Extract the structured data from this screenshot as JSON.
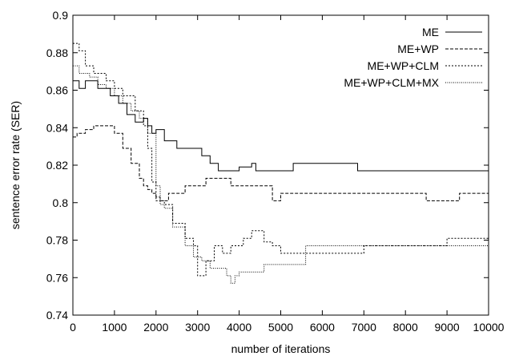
{
  "chart_data": {
    "type": "line",
    "title": "",
    "xlabel": "number of iterations",
    "ylabel": "sentence error rate (SER)",
    "xlim": [
      0,
      10000
    ],
    "ylim": [
      0.74,
      0.9
    ],
    "xticks": [
      0,
      1000,
      2000,
      3000,
      4000,
      5000,
      6000,
      7000,
      8000,
      9000,
      10000
    ],
    "yticks": [
      0.74,
      0.76,
      0.78,
      0.8,
      0.82,
      0.84,
      0.86,
      0.88,
      0.9
    ],
    "ytick_labels": [
      "0.74",
      "0.76",
      "0.78",
      "0.8",
      "0.82",
      "0.84",
      "0.86",
      "0.88",
      "0.9"
    ],
    "grid": false,
    "legend_position": "top-right",
    "series": [
      {
        "name": "ME",
        "style": "solid",
        "color": "#000000",
        "x": [
          0,
          150,
          300,
          600,
          900,
          1100,
          1300,
          1500,
          1700,
          1800,
          1900,
          2000,
          2200,
          2500,
          2800,
          3100,
          3300,
          3500,
          4000,
          4300,
          4400,
          4500,
          4800,
          5300,
          5600,
          5700,
          6000,
          6850,
          7500,
          8500,
          10000
        ],
        "y": [
          0.865,
          0.861,
          0.865,
          0.861,
          0.857,
          0.853,
          0.847,
          0.843,
          0.845,
          0.841,
          0.837,
          0.839,
          0.833,
          0.829,
          0.829,
          0.825,
          0.821,
          0.817,
          0.819,
          0.821,
          0.817,
          0.817,
          0.817,
          0.821,
          0.821,
          0.821,
          0.821,
          0.817,
          0.817,
          0.817,
          0.817
        ]
      },
      {
        "name": "ME+WP",
        "style": "dashed",
        "color": "#000000",
        "x": [
          0,
          100,
          300,
          500,
          800,
          1000,
          1200,
          1400,
          1600,
          1700,
          1800,
          1900,
          2000,
          2100,
          2300,
          2700,
          3200,
          3800,
          4300,
          4800,
          5000,
          5300,
          5500,
          6000,
          7000,
          8000,
          8500,
          9300,
          10000
        ],
        "y": [
          0.835,
          0.837,
          0.839,
          0.841,
          0.841,
          0.837,
          0.829,
          0.821,
          0.813,
          0.809,
          0.807,
          0.805,
          0.803,
          0.801,
          0.805,
          0.809,
          0.813,
          0.809,
          0.809,
          0.801,
          0.805,
          0.805,
          0.805,
          0.805,
          0.805,
          0.805,
          0.801,
          0.805,
          0.805
        ]
      },
      {
        "name": "ME+WP+CLM",
        "style": "dotted",
        "color": "#000000",
        "x": [
          0,
          150,
          300,
          500,
          800,
          1000,
          1200,
          1500,
          1700,
          1800,
          1900,
          2000,
          2200,
          2400,
          2700,
          2900,
          3000,
          3200,
          3400,
          3600,
          3800,
          4100,
          4300,
          4600,
          4800,
          5000,
          6000,
          7000,
          8000,
          9000,
          10000
        ],
        "y": [
          0.885,
          0.881,
          0.873,
          0.869,
          0.865,
          0.861,
          0.857,
          0.849,
          0.841,
          0.829,
          0.811,
          0.801,
          0.799,
          0.789,
          0.781,
          0.777,
          0.761,
          0.769,
          0.777,
          0.773,
          0.777,
          0.781,
          0.785,
          0.779,
          0.777,
          0.773,
          0.773,
          0.777,
          0.777,
          0.781,
          0.781
        ]
      },
      {
        "name": "ME+WP+CLM+MX",
        "style": "dotted-fine",
        "color": "#000000",
        "x": [
          0,
          150,
          400,
          600,
          800,
          1000,
          1200,
          1400,
          1600,
          1800,
          2000,
          2100,
          2200,
          2400,
          2700,
          2900,
          3100,
          3300,
          3500,
          3700,
          3800,
          3900,
          4000,
          4600,
          5000,
          5600,
          6000,
          7000,
          8000,
          8600,
          9000,
          10000
        ],
        "y": [
          0.873,
          0.869,
          0.867,
          0.863,
          0.861,
          0.857,
          0.853,
          0.849,
          0.845,
          0.837,
          0.809,
          0.799,
          0.797,
          0.787,
          0.777,
          0.771,
          0.769,
          0.765,
          0.765,
          0.761,
          0.757,
          0.761,
          0.763,
          0.767,
          0.767,
          0.777,
          0.777,
          0.777,
          0.777,
          0.777,
          0.777,
          0.777
        ]
      }
    ]
  }
}
